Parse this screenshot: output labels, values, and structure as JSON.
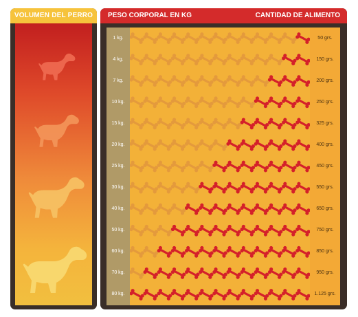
{
  "left": {
    "title": "VOLUMEN DEL PERRO",
    "dogs": [
      "dog-icon",
      "dog-icon",
      "dog-icon",
      "dog-icon"
    ]
  },
  "right": {
    "title_left": "PESO CORPORAL EN KG",
    "title_right": "CANTIDAD DE ALIMENTO"
  },
  "rows": [
    {
      "weight": "1 kg.",
      "amount": "50 grs.",
      "bones": 1
    },
    {
      "weight": "4 kg.",
      "amount": "150 grs.",
      "bones": 2
    },
    {
      "weight": "7 kg.",
      "amount": "200 grs.",
      "bones": 3
    },
    {
      "weight": "10 kg.",
      "amount": "250 grs.",
      "bones": 4
    },
    {
      "weight": "15 kg.",
      "amount": "325 grs.",
      "bones": 5
    },
    {
      "weight": "20 kg.",
      "amount": "400 grs.",
      "bones": 6
    },
    {
      "weight": "25 kg.",
      "amount": "450 grs.",
      "bones": 7
    },
    {
      "weight": "30 kg.",
      "amount": "550 grs.",
      "bones": 8
    },
    {
      "weight": "40 kg.",
      "amount": "650 grs.",
      "bones": 9
    },
    {
      "weight": "50 kg.",
      "amount": "750 grs.",
      "bones": 10
    },
    {
      "weight": "60 kg.",
      "amount": "850 grs.",
      "bones": 11
    },
    {
      "weight": "70 kg.",
      "amount": "950 grs.",
      "bones": 12
    },
    {
      "weight": "80 kg.",
      "amount": "1.125 grs.",
      "bones": 13
    }
  ],
  "colors": {
    "bone_active": "#d4202a",
    "bone_inactive": "#e49a3c",
    "header_left": "#f6c33c",
    "header_right": "#d42b2b"
  }
}
